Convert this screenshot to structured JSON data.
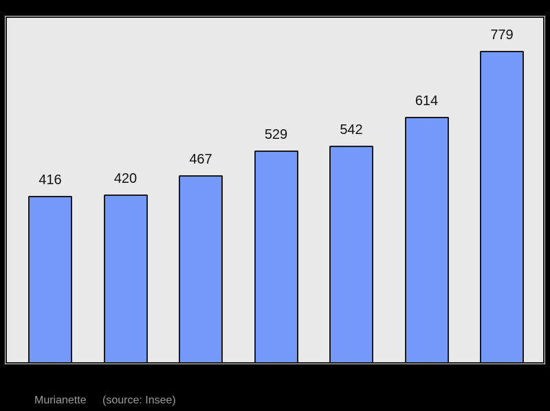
{
  "chart_data": {
    "type": "bar",
    "title": "",
    "xlabel": "",
    "ylabel": "",
    "values": [
      416,
      420,
      467,
      529,
      542,
      614,
      779
    ],
    "value_labels": [
      "416",
      "420",
      "467",
      "529",
      "542",
      "614",
      "779"
    ],
    "ylim": [
      0,
      861
    ],
    "grid": false,
    "legend": false,
    "value_labels_position": "above-bars"
  },
  "caption": {
    "name": "Murianette",
    "source": "(source: Insee)"
  },
  "colors": {
    "page_background": "#000000",
    "plot_background": "#e9e9e9",
    "plot_border": "#1b1b1b",
    "plot_outline": "#d9d9d9",
    "bar_fill": "#7499fa",
    "bar_border": "#1a1a1a",
    "value_label": "#111111",
    "caption_text": "#9b9b9b"
  }
}
